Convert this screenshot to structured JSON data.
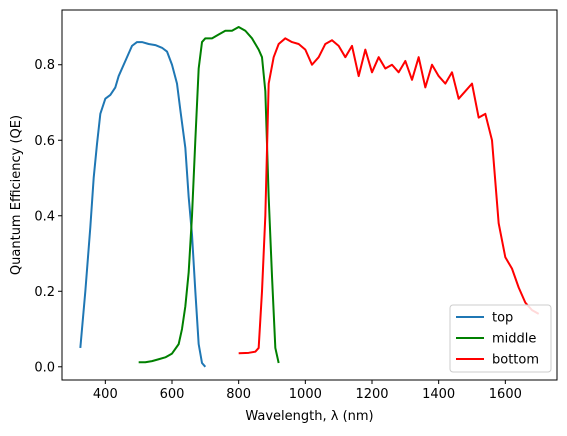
{
  "chart_data": {
    "type": "line",
    "title": "",
    "xlabel": "Wavelength, λ (nm)",
    "ylabel": "Quantum Efficiency (QE)",
    "xlim": [
      270,
      1755
    ],
    "ylim": [
      -0.035,
      0.945
    ],
    "xticks": [
      400,
      600,
      800,
      1000,
      1200,
      1400,
      1600
    ],
    "yticks": [
      0.0,
      0.2,
      0.4,
      0.6,
      0.8
    ],
    "grid": false,
    "legend_position": "lower-right",
    "series": [
      {
        "name": "top",
        "color": "#1f77b4",
        "x": [
          325,
          340,
          355,
          365,
          375,
          385,
          400,
          415,
          430,
          440,
          460,
          480,
          495,
          510,
          530,
          550,
          570,
          585,
          600,
          615,
          625,
          640,
          650,
          660,
          670,
          680,
          690,
          700
        ],
        "y": [
          0.05,
          0.2,
          0.37,
          0.5,
          0.59,
          0.67,
          0.71,
          0.72,
          0.74,
          0.77,
          0.81,
          0.85,
          0.86,
          0.86,
          0.855,
          0.852,
          0.845,
          0.835,
          0.8,
          0.75,
          0.68,
          0.58,
          0.45,
          0.35,
          0.2,
          0.06,
          0.01,
          0.0
        ]
      },
      {
        "name": "middle",
        "color": "#008000",
        "x": [
          500,
          520,
          540,
          560,
          580,
          600,
          620,
          630,
          640,
          650,
          660,
          670,
          680,
          690,
          700,
          720,
          740,
          760,
          780,
          800,
          820,
          840,
          860,
          870,
          880,
          890,
          900,
          910,
          920
        ],
        "y": [
          0.012,
          0.012,
          0.015,
          0.02,
          0.025,
          0.035,
          0.06,
          0.1,
          0.16,
          0.25,
          0.4,
          0.6,
          0.79,
          0.86,
          0.87,
          0.87,
          0.88,
          0.89,
          0.89,
          0.9,
          0.89,
          0.87,
          0.84,
          0.82,
          0.73,
          0.45,
          0.24,
          0.05,
          0.01
        ]
      },
      {
        "name": "bottom",
        "color": "#ff0000",
        "x": [
          800,
          830,
          850,
          860,
          870,
          880,
          890,
          905,
          920,
          940,
          960,
          980,
          1000,
          1020,
          1040,
          1060,
          1080,
          1100,
          1120,
          1140,
          1160,
          1180,
          1200,
          1220,
          1240,
          1260,
          1280,
          1300,
          1320,
          1340,
          1360,
          1380,
          1400,
          1420,
          1440,
          1460,
          1480,
          1500,
          1520,
          1540,
          1560,
          1580,
          1600,
          1620,
          1640,
          1660,
          1680,
          1700
        ],
        "y": [
          0.036,
          0.037,
          0.04,
          0.05,
          0.2,
          0.4,
          0.75,
          0.82,
          0.855,
          0.87,
          0.86,
          0.855,
          0.84,
          0.8,
          0.82,
          0.855,
          0.865,
          0.85,
          0.82,
          0.85,
          0.77,
          0.84,
          0.78,
          0.82,
          0.79,
          0.8,
          0.78,
          0.81,
          0.76,
          0.82,
          0.74,
          0.8,
          0.77,
          0.75,
          0.78,
          0.71,
          0.73,
          0.75,
          0.66,
          0.67,
          0.6,
          0.38,
          0.29,
          0.26,
          0.21,
          0.17,
          0.15,
          0.14
        ]
      }
    ]
  }
}
